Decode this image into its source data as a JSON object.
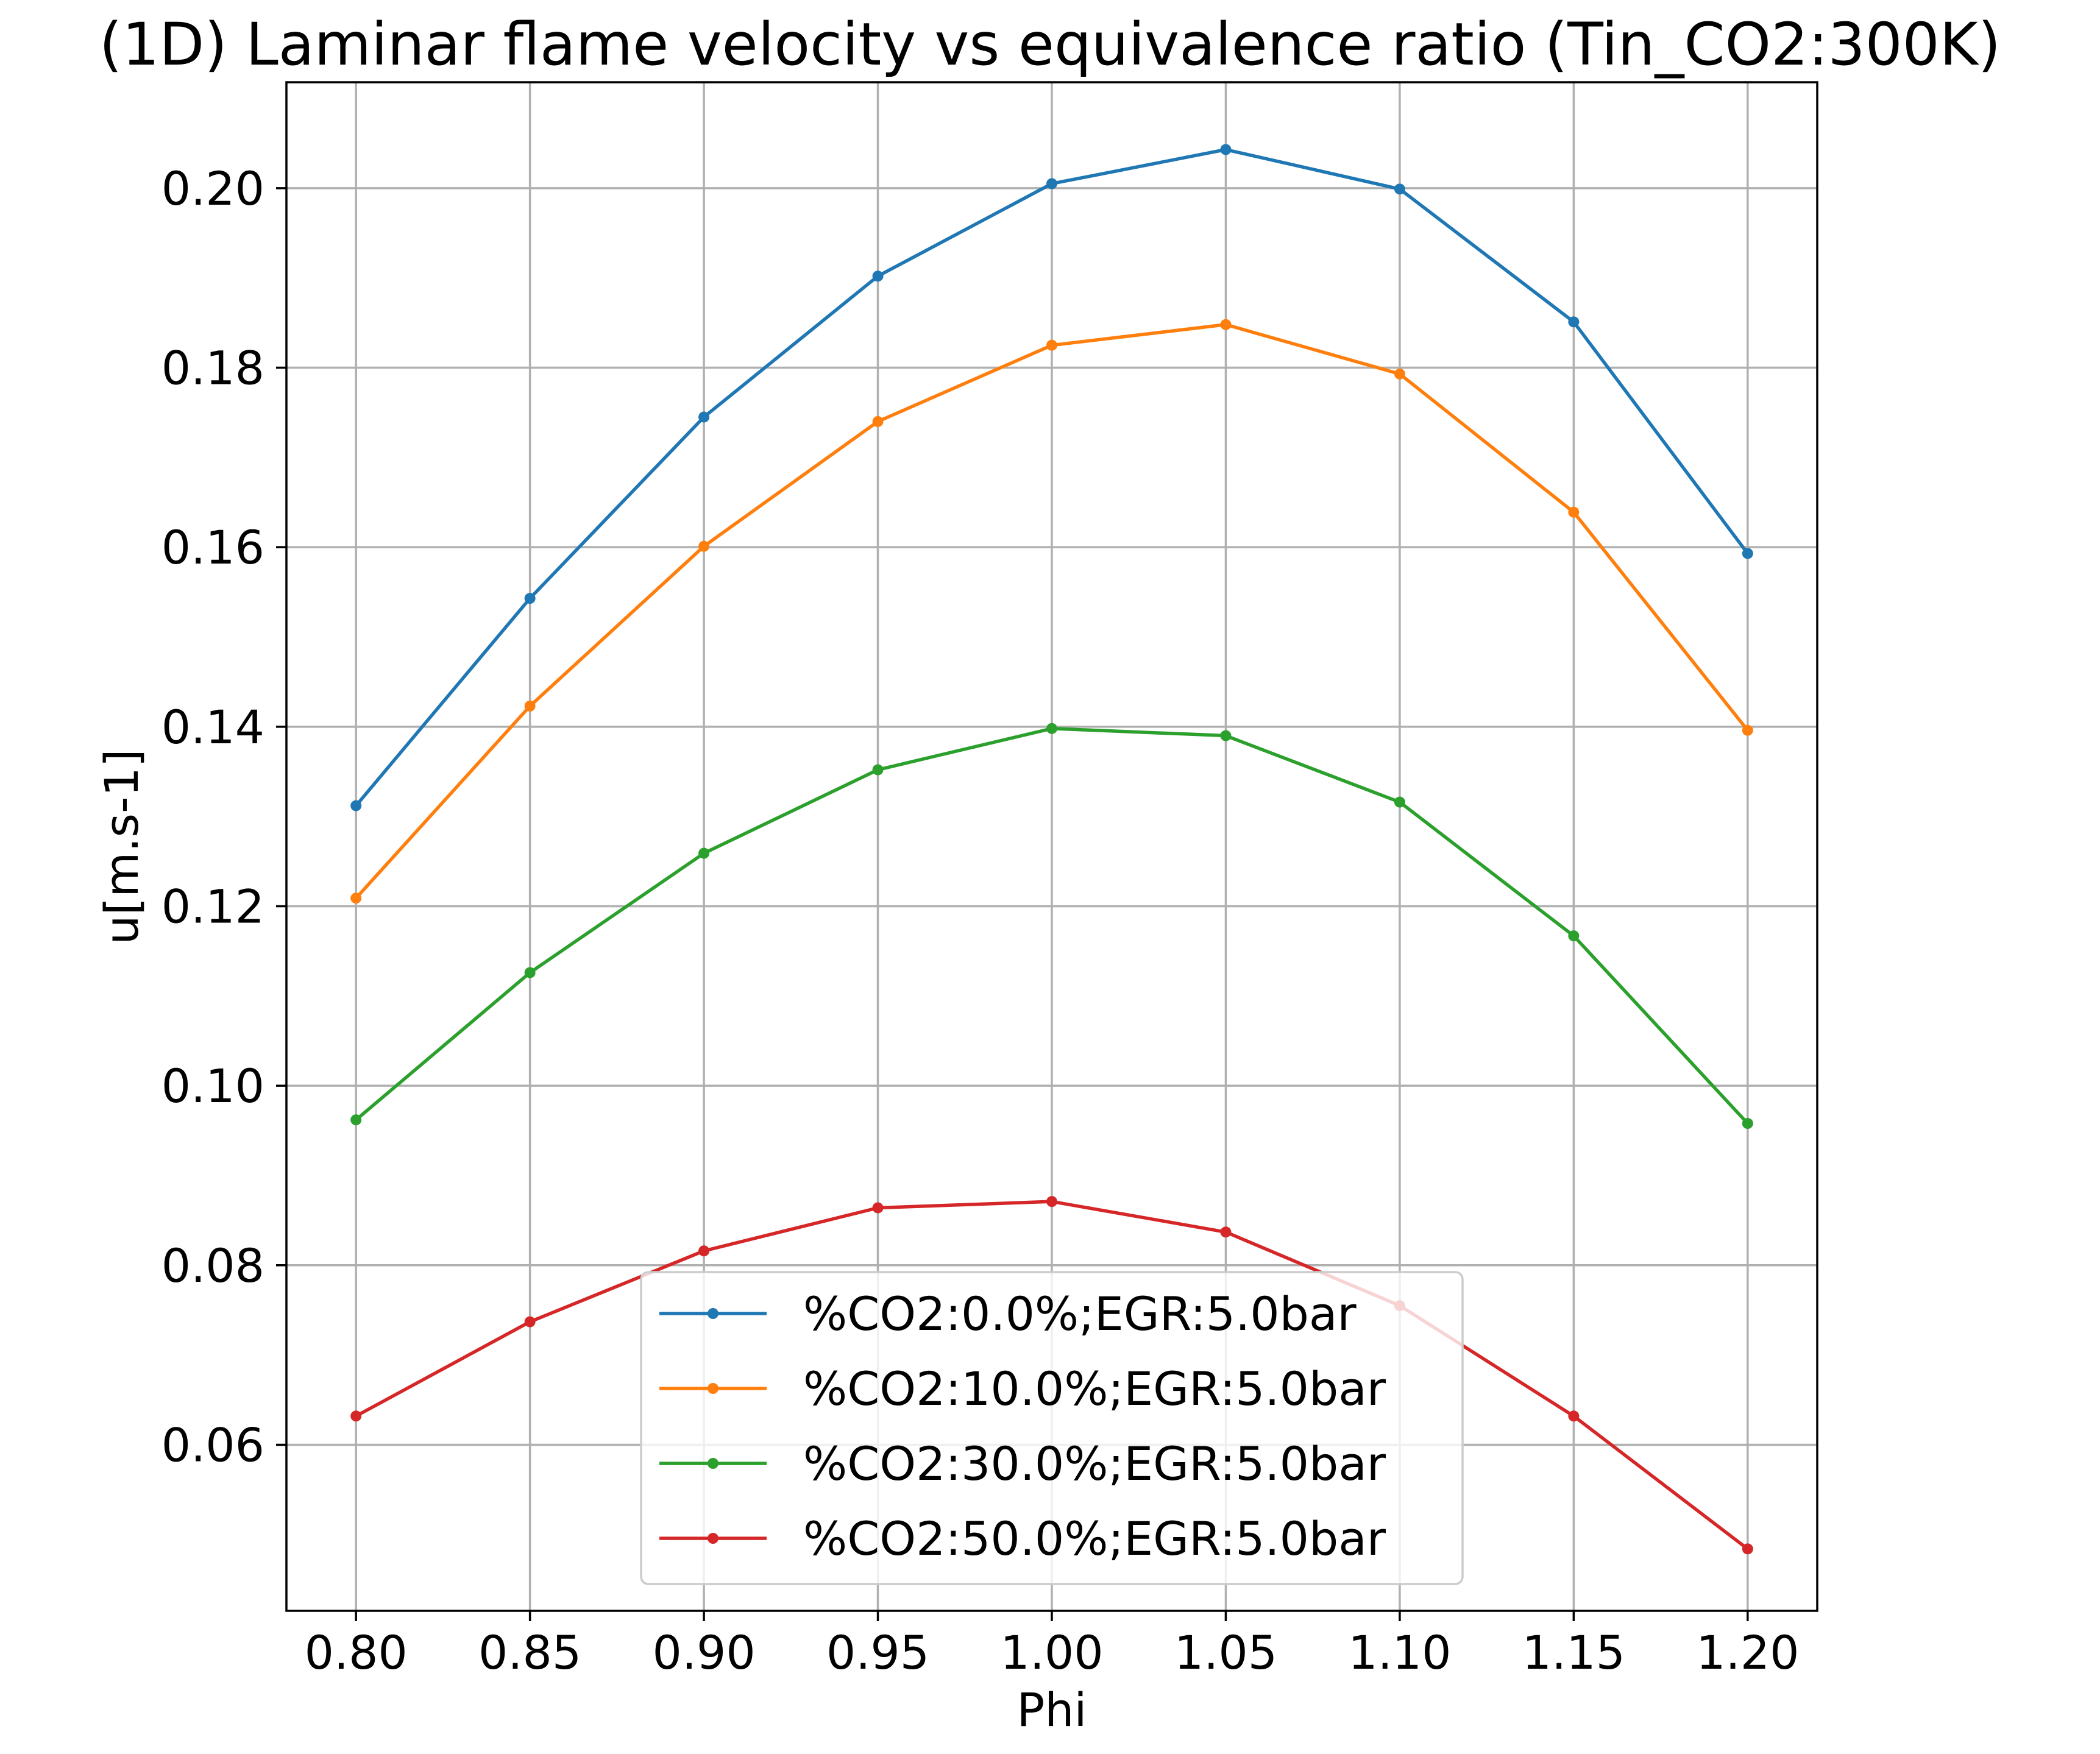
{
  "chart_data": {
    "type": "line",
    "title": "(1D) Laminar flame velocity vs equivalence ratio (Tin_CO2:300K)",
    "xlabel": "Phi",
    "ylabel": "u[m.s-1]",
    "x": [
      0.8,
      0.85,
      0.9,
      0.95,
      1.0,
      1.05,
      1.1,
      1.15,
      1.2
    ],
    "xticks": [
      "0.80",
      "0.85",
      "0.90",
      "0.95",
      "1.00",
      "1.05",
      "1.10",
      "1.15",
      "1.20"
    ],
    "yticks": [
      "0.06",
      "0.08",
      "0.10",
      "0.12",
      "0.14",
      "0.16",
      "0.18",
      "0.20"
    ],
    "xlim": [
      0.78,
      1.22
    ],
    "ylim": [
      0.0415,
      0.2118
    ],
    "grid": true,
    "legend_position": "lower center",
    "series": [
      {
        "name": "%CO2:0.0%;EGR:5.0bar",
        "color": "#1f77b4",
        "values": [
          0.1312,
          0.1543,
          0.1745,
          0.1902,
          0.2005,
          0.2043,
          0.1999,
          0.1851,
          0.1593
        ]
      },
      {
        "name": "%CO2:10.0%;EGR:5.0bar",
        "color": "#ff7f0e",
        "values": [
          0.1209,
          0.1423,
          0.1601,
          0.174,
          0.1825,
          0.1848,
          0.1793,
          0.1639,
          0.1396
        ]
      },
      {
        "name": "%CO2:30.0%;EGR:5.0bar",
        "color": "#2ca02c",
        "values": [
          0.0962,
          0.1126,
          0.1259,
          0.1352,
          0.1398,
          0.139,
          0.1316,
          0.1167,
          0.0958
        ]
      },
      {
        "name": "%CO2:50.0%;EGR:5.0bar",
        "color": "#d62728",
        "values": [
          0.0632,
          0.0737,
          0.0816,
          0.0864,
          0.0871,
          0.0837,
          0.0755,
          0.0632,
          0.0484
        ]
      }
    ]
  }
}
